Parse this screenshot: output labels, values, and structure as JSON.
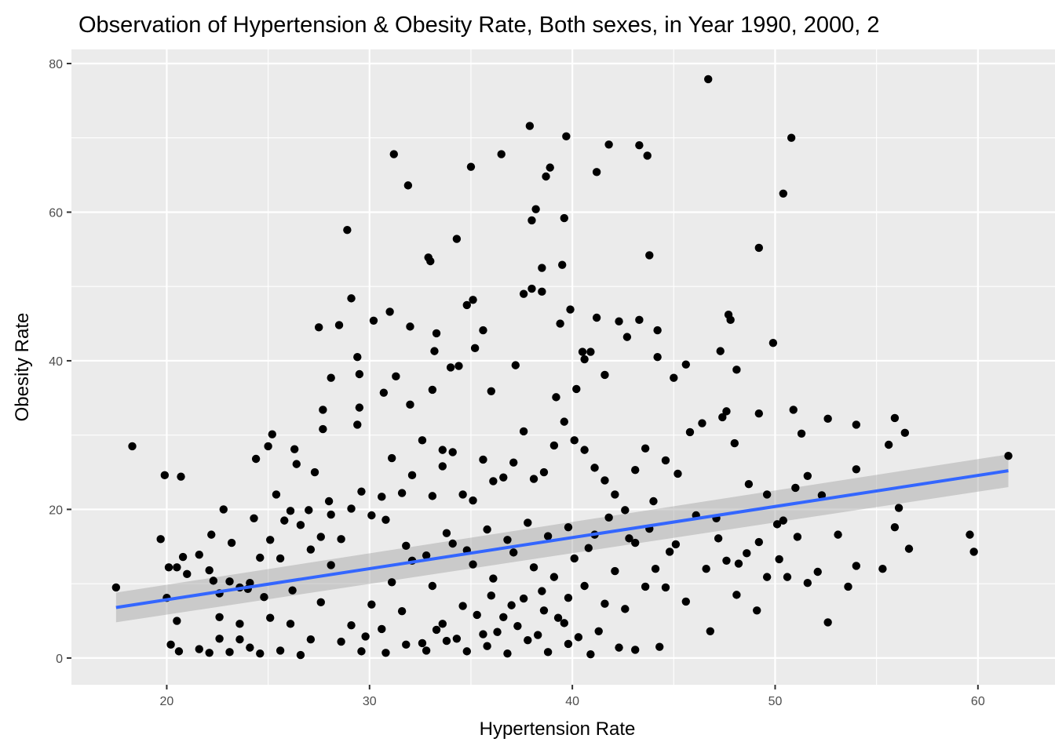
{
  "chart_data": {
    "type": "scatter",
    "title": "Observation of Hypertension & Obesity Rate, Both sexes, in Year 1990, 2000, 2",
    "xlabel": "Hypertension Rate",
    "ylabel": "Obesity Rate",
    "xlim": [
      15.3,
      63.8
    ],
    "ylim": [
      -3.6,
      81.9
    ],
    "x_ticks": [
      20,
      30,
      40,
      50,
      60
    ],
    "y_ticks": [
      0,
      20,
      40,
      60,
      80
    ],
    "grid": true,
    "legend": "none",
    "point_color": "#000000",
    "panel_background": "#ebebeb",
    "grid_color": "#ffffff",
    "trend_line": {
      "method": "linear",
      "color": "#3366ff",
      "band_color": "#999999",
      "points": [
        {
          "x": 17.5,
          "y": 6.8,
          "lower": 4.8,
          "upper": 8.8
        },
        {
          "x": 61.5,
          "y": 25.2,
          "lower": 23.0,
          "upper": 27.4
        }
      ]
    },
    "series": [
      {
        "points": [
          [
            17.5,
            9.5
          ],
          [
            18.3,
            28.5
          ],
          [
            19.7,
            16.0
          ],
          [
            19.9,
            24.6
          ],
          [
            20.0,
            8.1
          ],
          [
            20.2,
            1.8
          ],
          [
            20.5,
            12.2
          ],
          [
            20.5,
            5.0
          ],
          [
            20.7,
            24.4
          ],
          [
            20.8,
            13.6
          ],
          [
            21.0,
            11.3
          ],
          [
            22.2,
            16.6
          ],
          [
            22.3,
            10.4
          ],
          [
            22.6,
            5.5
          ],
          [
            22.8,
            20.0
          ],
          [
            23.2,
            15.5
          ],
          [
            23.6,
            2.5
          ],
          [
            24.0,
            9.3
          ],
          [
            24.3,
            18.8
          ],
          [
            24.4,
            26.8
          ],
          [
            24.8,
            8.2
          ],
          [
            25.0,
            28.5
          ],
          [
            25.2,
            30.1
          ],
          [
            25.4,
            22.0
          ],
          [
            25.8,
            18.5
          ],
          [
            26.2,
            9.1
          ],
          [
            26.3,
            28.1
          ],
          [
            26.4,
            26.1
          ],
          [
            27.0,
            19.9
          ],
          [
            27.3,
            25.0
          ],
          [
            27.5,
            44.5
          ],
          [
            27.7,
            33.4
          ],
          [
            27.7,
            30.8
          ],
          [
            28.0,
            21.1
          ],
          [
            28.1,
            37.7
          ],
          [
            28.5,
            44.8
          ],
          [
            28.9,
            57.6
          ],
          [
            29.1,
            48.4
          ],
          [
            29.4,
            40.5
          ],
          [
            29.5,
            38.2
          ],
          [
            29.5,
            33.7
          ],
          [
            29.4,
            31.4
          ],
          [
            30.2,
            45.4
          ],
          [
            30.7,
            35.7
          ],
          [
            31.0,
            46.6
          ],
          [
            31.2,
            67.8
          ],
          [
            31.3,
            37.9
          ],
          [
            31.9,
            63.6
          ],
          [
            32.0,
            44.6
          ],
          [
            32.0,
            34.1
          ],
          [
            32.9,
            53.9
          ],
          [
            33.0,
            53.4
          ],
          [
            33.1,
            36.1
          ],
          [
            33.2,
            41.3
          ],
          [
            33.3,
            43.7
          ],
          [
            33.6,
            28.0
          ],
          [
            34.0,
            39.1
          ],
          [
            34.4,
            39.3
          ],
          [
            34.3,
            56.4
          ],
          [
            34.8,
            47.5
          ],
          [
            35.0,
            66.1
          ],
          [
            35.1,
            48.2
          ],
          [
            35.2,
            41.7
          ],
          [
            35.6,
            44.1
          ],
          [
            36.0,
            35.9
          ],
          [
            36.5,
            67.8
          ],
          [
            37.2,
            39.4
          ],
          [
            37.6,
            49.0
          ],
          [
            37.9,
            71.6
          ],
          [
            38.0,
            58.9
          ],
          [
            38.0,
            49.7
          ],
          [
            38.2,
            60.4
          ],
          [
            38.5,
            52.5
          ],
          [
            38.5,
            49.3
          ],
          [
            38.7,
            64.8
          ],
          [
            38.9,
            66.0
          ],
          [
            39.2,
            35.1
          ],
          [
            39.4,
            45.0
          ],
          [
            39.5,
            52.9
          ],
          [
            39.6,
            59.2
          ],
          [
            39.7,
            70.2
          ],
          [
            39.9,
            46.9
          ],
          [
            40.2,
            36.2
          ],
          [
            40.5,
            41.2
          ],
          [
            40.6,
            40.2
          ],
          [
            40.9,
            41.2
          ],
          [
            41.2,
            65.4
          ],
          [
            41.2,
            45.8
          ],
          [
            41.6,
            38.1
          ],
          [
            41.8,
            69.1
          ],
          [
            42.3,
            45.3
          ],
          [
            42.7,
            43.2
          ],
          [
            43.3,
            45.5
          ],
          [
            43.3,
            69.0
          ],
          [
            43.7,
            67.6
          ],
          [
            43.8,
            54.2
          ],
          [
            44.2,
            44.1
          ],
          [
            44.2,
            40.5
          ],
          [
            45.0,
            37.7
          ],
          [
            45.6,
            39.5
          ],
          [
            46.7,
            77.9
          ],
          [
            47.3,
            41.3
          ],
          [
            47.7,
            46.2
          ],
          [
            47.8,
            45.5
          ],
          [
            48.1,
            38.8
          ],
          [
            49.2,
            55.2
          ],
          [
            49.2,
            32.9
          ],
          [
            49.9,
            42.4
          ],
          [
            50.4,
            62.5
          ],
          [
            50.8,
            70.0
          ],
          [
            50.9,
            33.4
          ],
          [
            51.3,
            30.2
          ],
          [
            52.6,
            32.2
          ],
          [
            54.0,
            31.4
          ],
          [
            55.9,
            32.3
          ],
          [
            56.4,
            30.3
          ],
          [
            55.6,
            28.7
          ],
          [
            54.0,
            25.4
          ],
          [
            61.5,
            27.2
          ],
          [
            52.3,
            21.9
          ],
          [
            51.6,
            24.5
          ],
          [
            51.0,
            22.9
          ],
          [
            50.4,
            18.5
          ],
          [
            49.6,
            22.0
          ],
          [
            48.7,
            23.4
          ],
          [
            48.0,
            28.9
          ],
          [
            47.6,
            33.2
          ],
          [
            47.4,
            32.4
          ],
          [
            46.4,
            31.6
          ],
          [
            45.8,
            30.4
          ],
          [
            45.2,
            24.8
          ],
          [
            44.6,
            26.6
          ],
          [
            44.0,
            21.1
          ],
          [
            43.6,
            28.2
          ],
          [
            43.1,
            25.3
          ],
          [
            42.6,
            19.9
          ],
          [
            42.1,
            22.0
          ],
          [
            41.6,
            23.9
          ],
          [
            41.1,
            25.6
          ],
          [
            40.6,
            28.0
          ],
          [
            40.1,
            29.3
          ],
          [
            39.6,
            31.8
          ],
          [
            39.1,
            28.6
          ],
          [
            38.6,
            25.0
          ],
          [
            38.1,
            24.1
          ],
          [
            37.6,
            30.5
          ],
          [
            37.1,
            26.3
          ],
          [
            36.6,
            24.3
          ],
          [
            36.1,
            23.8
          ],
          [
            35.6,
            26.7
          ],
          [
            35.1,
            21.2
          ],
          [
            34.6,
            22.0
          ],
          [
            34.1,
            27.7
          ],
          [
            33.6,
            25.8
          ],
          [
            33.1,
            21.8
          ],
          [
            32.6,
            29.3
          ],
          [
            32.1,
            24.6
          ],
          [
            31.6,
            22.2
          ],
          [
            31.1,
            26.9
          ],
          [
            30.6,
            21.7
          ],
          [
            30.1,
            19.2
          ],
          [
            29.6,
            22.4
          ],
          [
            29.1,
            20.1
          ],
          [
            28.6,
            16.0
          ],
          [
            28.1,
            19.3
          ],
          [
            27.6,
            16.3
          ],
          [
            27.1,
            14.6
          ],
          [
            26.6,
            17.9
          ],
          [
            26.1,
            19.8
          ],
          [
            25.6,
            13.4
          ],
          [
            25.1,
            15.9
          ],
          [
            24.6,
            13.5
          ],
          [
            24.1,
            10.1
          ],
          [
            23.6,
            9.5
          ],
          [
            23.1,
            10.3
          ],
          [
            22.6,
            8.7
          ],
          [
            22.1,
            11.8
          ],
          [
            21.6,
            13.9
          ],
          [
            20.1,
            12.2
          ],
          [
            59.6,
            16.6
          ],
          [
            59.8,
            14.3
          ],
          [
            56.6,
            14.7
          ],
          [
            55.9,
            17.6
          ],
          [
            56.1,
            20.2
          ],
          [
            55.3,
            12.0
          ],
          [
            54.0,
            12.4
          ],
          [
            53.6,
            9.6
          ],
          [
            53.1,
            16.6
          ],
          [
            52.6,
            4.8
          ],
          [
            52.1,
            11.6
          ],
          [
            51.6,
            10.1
          ],
          [
            51.1,
            16.3
          ],
          [
            50.6,
            10.9
          ],
          [
            50.1,
            18.0
          ],
          [
            49.6,
            10.9
          ],
          [
            49.1,
            6.4
          ],
          [
            48.6,
            14.1
          ],
          [
            48.1,
            8.5
          ],
          [
            47.6,
            13.1
          ],
          [
            47.1,
            18.8
          ],
          [
            46.6,
            12.0
          ],
          [
            46.1,
            19.2
          ],
          [
            45.6,
            7.6
          ],
          [
            45.1,
            15.3
          ],
          [
            44.6,
            9.5
          ],
          [
            44.3,
            1.5
          ],
          [
            44.1,
            12.0
          ],
          [
            43.6,
            9.6
          ],
          [
            43.1,
            15.5
          ],
          [
            42.6,
            6.6
          ],
          [
            42.1,
            11.7
          ],
          [
            41.6,
            7.3
          ],
          [
            41.1,
            16.6
          ],
          [
            40.6,
            9.7
          ],
          [
            40.1,
            13.4
          ],
          [
            39.6,
            4.7
          ],
          [
            39.1,
            10.9
          ],
          [
            38.6,
            6.4
          ],
          [
            38.1,
            12.2
          ],
          [
            37.6,
            8.0
          ],
          [
            37.1,
            14.2
          ],
          [
            36.6,
            5.5
          ],
          [
            36.1,
            10.7
          ],
          [
            35.6,
            3.2
          ],
          [
            35.1,
            12.6
          ],
          [
            34.6,
            7.0
          ],
          [
            34.1,
            15.4
          ],
          [
            33.6,
            4.6
          ],
          [
            33.1,
            9.7
          ],
          [
            32.6,
            2.0
          ],
          [
            32.1,
            13.1
          ],
          [
            31.6,
            6.3
          ],
          [
            31.1,
            10.2
          ],
          [
            30.6,
            3.9
          ],
          [
            30.1,
            7.2
          ],
          [
            29.6,
            0.9
          ],
          [
            29.1,
            4.4
          ],
          [
            28.6,
            2.2
          ],
          [
            28.1,
            12.5
          ],
          [
            27.6,
            7.5
          ],
          [
            27.1,
            2.5
          ],
          [
            26.6,
            0.4
          ],
          [
            26.1,
            4.6
          ],
          [
            25.6,
            1.0
          ],
          [
            25.1,
            5.4
          ],
          [
            24.6,
            0.6
          ],
          [
            24.1,
            1.4
          ],
          [
            23.6,
            4.6
          ],
          [
            23.1,
            0.8
          ],
          [
            22.6,
            2.6
          ],
          [
            22.1,
            0.7
          ],
          [
            21.6,
            1.2
          ],
          [
            20.6,
            0.9
          ],
          [
            40.9,
            0.5
          ],
          [
            39.8,
            1.9
          ],
          [
            38.8,
            0.8
          ],
          [
            37.8,
            2.4
          ],
          [
            36.8,
            0.6
          ],
          [
            35.8,
            1.6
          ],
          [
            34.8,
            0.9
          ],
          [
            33.8,
            2.3
          ],
          [
            32.8,
            1.0
          ],
          [
            31.8,
            1.8
          ],
          [
            30.8,
            0.7
          ],
          [
            29.8,
            2.9
          ],
          [
            36.3,
            3.5
          ],
          [
            35.3,
            5.8
          ],
          [
            37.3,
            4.3
          ],
          [
            38.3,
            3.1
          ],
          [
            39.3,
            5.4
          ],
          [
            40.3,
            2.8
          ],
          [
            41.3,
            3.6
          ],
          [
            42.3,
            1.4
          ],
          [
            43.1,
            1.1
          ],
          [
            34.3,
            2.6
          ],
          [
            33.3,
            3.8
          ],
          [
            37.0,
            7.1
          ],
          [
            36.0,
            8.4
          ],
          [
            38.5,
            9.0
          ],
          [
            39.8,
            8.1
          ],
          [
            35.8,
            17.3
          ],
          [
            36.8,
            15.9
          ],
          [
            37.8,
            18.2
          ],
          [
            38.8,
            16.4
          ],
          [
            39.8,
            17.6
          ],
          [
            40.8,
            14.8
          ],
          [
            41.8,
            18.9
          ],
          [
            42.8,
            16.1
          ],
          [
            43.8,
            17.4
          ],
          [
            44.8,
            14.3
          ],
          [
            34.8,
            14.5
          ],
          [
            33.8,
            16.8
          ],
          [
            32.8,
            13.8
          ],
          [
            31.8,
            15.1
          ],
          [
            30.8,
            18.6
          ],
          [
            46.8,
            3.6
          ],
          [
            47.2,
            16.1
          ],
          [
            48.2,
            12.7
          ],
          [
            49.2,
            15.6
          ],
          [
            50.2,
            13.3
          ]
        ]
      }
    ]
  }
}
